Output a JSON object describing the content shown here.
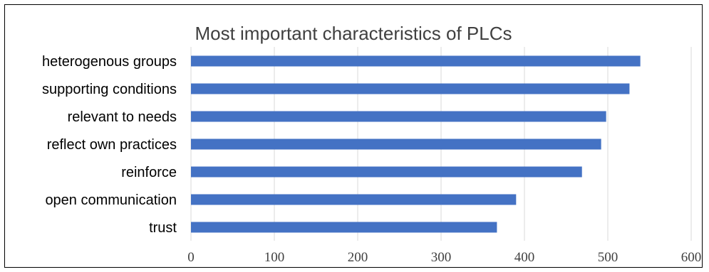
{
  "chart_data": {
    "type": "bar",
    "orientation": "horizontal",
    "title": "Most important characteristics of PLCs",
    "categories": [
      "heterogenous groups",
      "supporting conditions",
      "relevant to needs",
      "reflect own practices",
      "reinforce",
      "open communication",
      "trust"
    ],
    "values": [
      539,
      526,
      498,
      492,
      469,
      390,
      367
    ],
    "xlim": [
      0,
      600
    ],
    "xticks": [
      0,
      100,
      200,
      300,
      400,
      500,
      600
    ],
    "xlabel": "",
    "ylabel": "",
    "grid": true,
    "bar_color": "#4472C4",
    "grid_color": "#D9D9D9"
  }
}
